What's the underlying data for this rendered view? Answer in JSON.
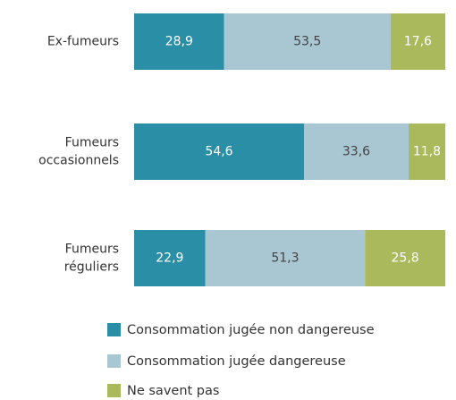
{
  "chart_data": {
    "type": "stacked-bar-horizontal",
    "categories": [
      "Ex-fumeurs",
      "Fumeurs occasionnels",
      "Fumeurs réguliers"
    ],
    "series": [
      {
        "name": "Consommation jugée non dangereuse",
        "color": "#2a8fa6",
        "values": [
          28.9,
          54.6,
          22.9
        ],
        "value_labels": [
          "28,9",
          "54,6",
          "22,9"
        ]
      },
      {
        "name": "Consommation jugée dangereuse",
        "color": "#a9c6d3",
        "values": [
          53.5,
          33.6,
          51.3
        ],
        "value_labels": [
          "53,5",
          "33,6",
          "51,3"
        ]
      },
      {
        "name": "Ne savent pas",
        "color": "#a9b95c",
        "values": [
          17.6,
          11.8,
          25.8
        ],
        "value_labels": [
          "17,6",
          "11,8",
          "25,8"
        ]
      }
    ]
  }
}
